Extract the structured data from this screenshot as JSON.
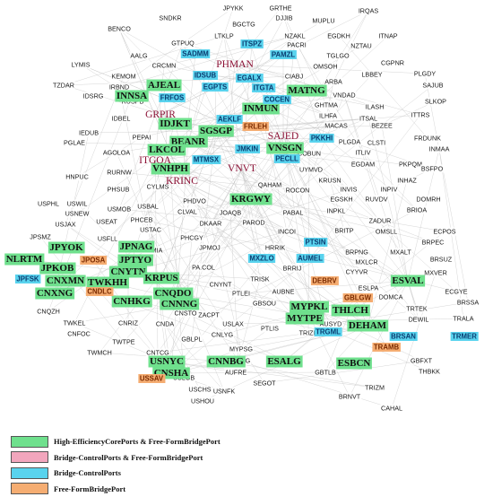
{
  "colors": {
    "core": "#6fe08d",
    "control": "#f2a6bd",
    "bridge": "#59d3ee",
    "free": "#f5ad72",
    "node_text": "#1a1a1a",
    "edge": "#c4c4c4"
  },
  "legend": [
    {
      "category": "core",
      "label": "High-EfficiencyCorePorts & Free-FormBridgePort"
    },
    {
      "category": "control",
      "label": "Bridge-ControlPorts & Free-FormBridgePort"
    },
    {
      "category": "bridge",
      "label": "Bridge-ControlPorts"
    },
    {
      "category": "free",
      "label": "Free-FormBridgePort"
    }
  ],
  "nodes": {
    "plain": [
      "JPYKK",
      "GRTHE",
      "IRQAS",
      "SNDKR",
      "DJJIB",
      "MUPLU",
      "BENCO",
      "BGCTG",
      "NZAKL",
      "EGDKH",
      "ITNAP",
      "LTKLP",
      "PACRI",
      "NZTAU",
      "GTPUQ",
      "AALG",
      "TGLGO",
      "CGPNR",
      "LYMIS",
      "CRCMN",
      "OMSOH",
      "KEMOM",
      "LBBEY",
      "PLGDY",
      "TZDAR",
      "IRBND",
      "ARBA",
      "SAJUB",
      "IDSRG",
      "RUSPB",
      "CIABJ",
      "VNDAD",
      "SLKOP",
      "GHTMA",
      "ILASH",
      "IDBEL",
      "ILHFA",
      "ITSAL",
      "ITTRS",
      "IEDUB",
      "PEPAI",
      "MACAS",
      "BEZEE",
      "PGLAE",
      "AGOLOA",
      "PLGDA",
      "CLSTI",
      "FRDUNK",
      "INMAA",
      "ITLIV",
      "COBUN",
      "EGDAM",
      "PKPQM",
      "HNPUC",
      "RURNW",
      "UYMVD",
      "BSFPO",
      "CYLMS",
      "KRUSN",
      "INHAZ",
      "PHSUB",
      "INVIS",
      "INPIV",
      "QAHAM",
      "USPHL",
      "USWIL",
      "PHDVO",
      "ROCON",
      "EGSKH",
      "USNEW",
      "USBAL",
      "RUVDV",
      "DOMRH",
      "USJAX",
      "USMOB",
      "CLVAL",
      "PABAL",
      "INPKL",
      "BRIOA",
      "USEAT",
      "PHCEB",
      "JOAQB",
      "ZADUR",
      "USTAC",
      "DKAAR",
      "PAROD",
      "JPSMZ",
      "USFLL",
      "INCOI",
      "OMSLL",
      "ECPOS",
      "BRITP",
      "PHCGY",
      "BRPEC",
      "USMIA",
      "JPMOJ",
      "HRRIK",
      "BRPNG",
      "MXALT",
      "BRSUZ",
      "MXLCR",
      "PA.COL",
      "BRRIJ",
      "MXVER",
      "CYYVR",
      "ECGYE",
      "TRISK",
      "CNYNT",
      "BRSSA",
      "PTLEI",
      "AUBNE",
      "ESLPA",
      "TRTEK",
      "CNQZH",
      "DOMCA",
      "TRALA",
      "ZACPT",
      "GBSOU",
      "DEWIL",
      "TWKEL",
      "CNSTO",
      "CNFOC",
      "CNRIZ",
      "CNDA",
      "USLAX",
      "AUSYD",
      "PTLIS",
      "TRIZK",
      "CNLYG",
      "GBLPL",
      "TWTPE",
      "TWMCH",
      "CNTCG",
      "MYPSG",
      "GBFXT",
      "THBKK",
      "MYPNG",
      "TRGBZ",
      "USOAK",
      "AUFRE",
      "GBTLB",
      "TRIZM",
      "USLGB",
      "SEGOT",
      "BRNVT",
      "USNFK",
      "CAHAL",
      "USCHS",
      "USHOU"
    ],
    "core": [
      "AJEAL",
      "MATNG",
      "INNSA",
      "INMUN",
      "IDJKT",
      "SGSGP",
      "BEANR",
      "LKCOL",
      "VNSGN",
      "VNHPH",
      "KRGWY",
      "JPYOK",
      "JPNAG",
      "NLRTM",
      "JPKOB",
      "JPTYO",
      "CNYTN",
      "CNXMN",
      "TWKHH",
      "KRPUS",
      "CNXNG",
      "CNQDO",
      "CNHKG",
      "CNNNG",
      "ESVAL",
      "MYPKL",
      "THLCH",
      "MYTPE",
      "DEHAM",
      "USNYC",
      "CNNBG",
      "ESALG",
      "ESBCN",
      "CNSHA"
    ],
    "control": [
      "PHMAN",
      "GRPIR",
      "SAJED",
      "ITGOA",
      "VNVT",
      "KRINC"
    ],
    "bridge": [
      "SADMM",
      "ITSPZ",
      "PAMZL",
      "IDSUB",
      "EGALX",
      "EGPTS",
      "FRFOS",
      "ITGTA",
      "COCEN",
      "AEKLF",
      "JMKIN",
      "PKKHI",
      "MTMSX",
      "PECLL",
      "PTSIN",
      "MXZLO",
      "AUMEL",
      "JPFSK",
      "TRGML",
      "BRSAN",
      "TRMER"
    ],
    "free": [
      "FRLEH",
      "JPOSA",
      "CNDLC",
      "DEBRV",
      "GBLGW",
      "TRAMB",
      "USSAV"
    ]
  }
}
